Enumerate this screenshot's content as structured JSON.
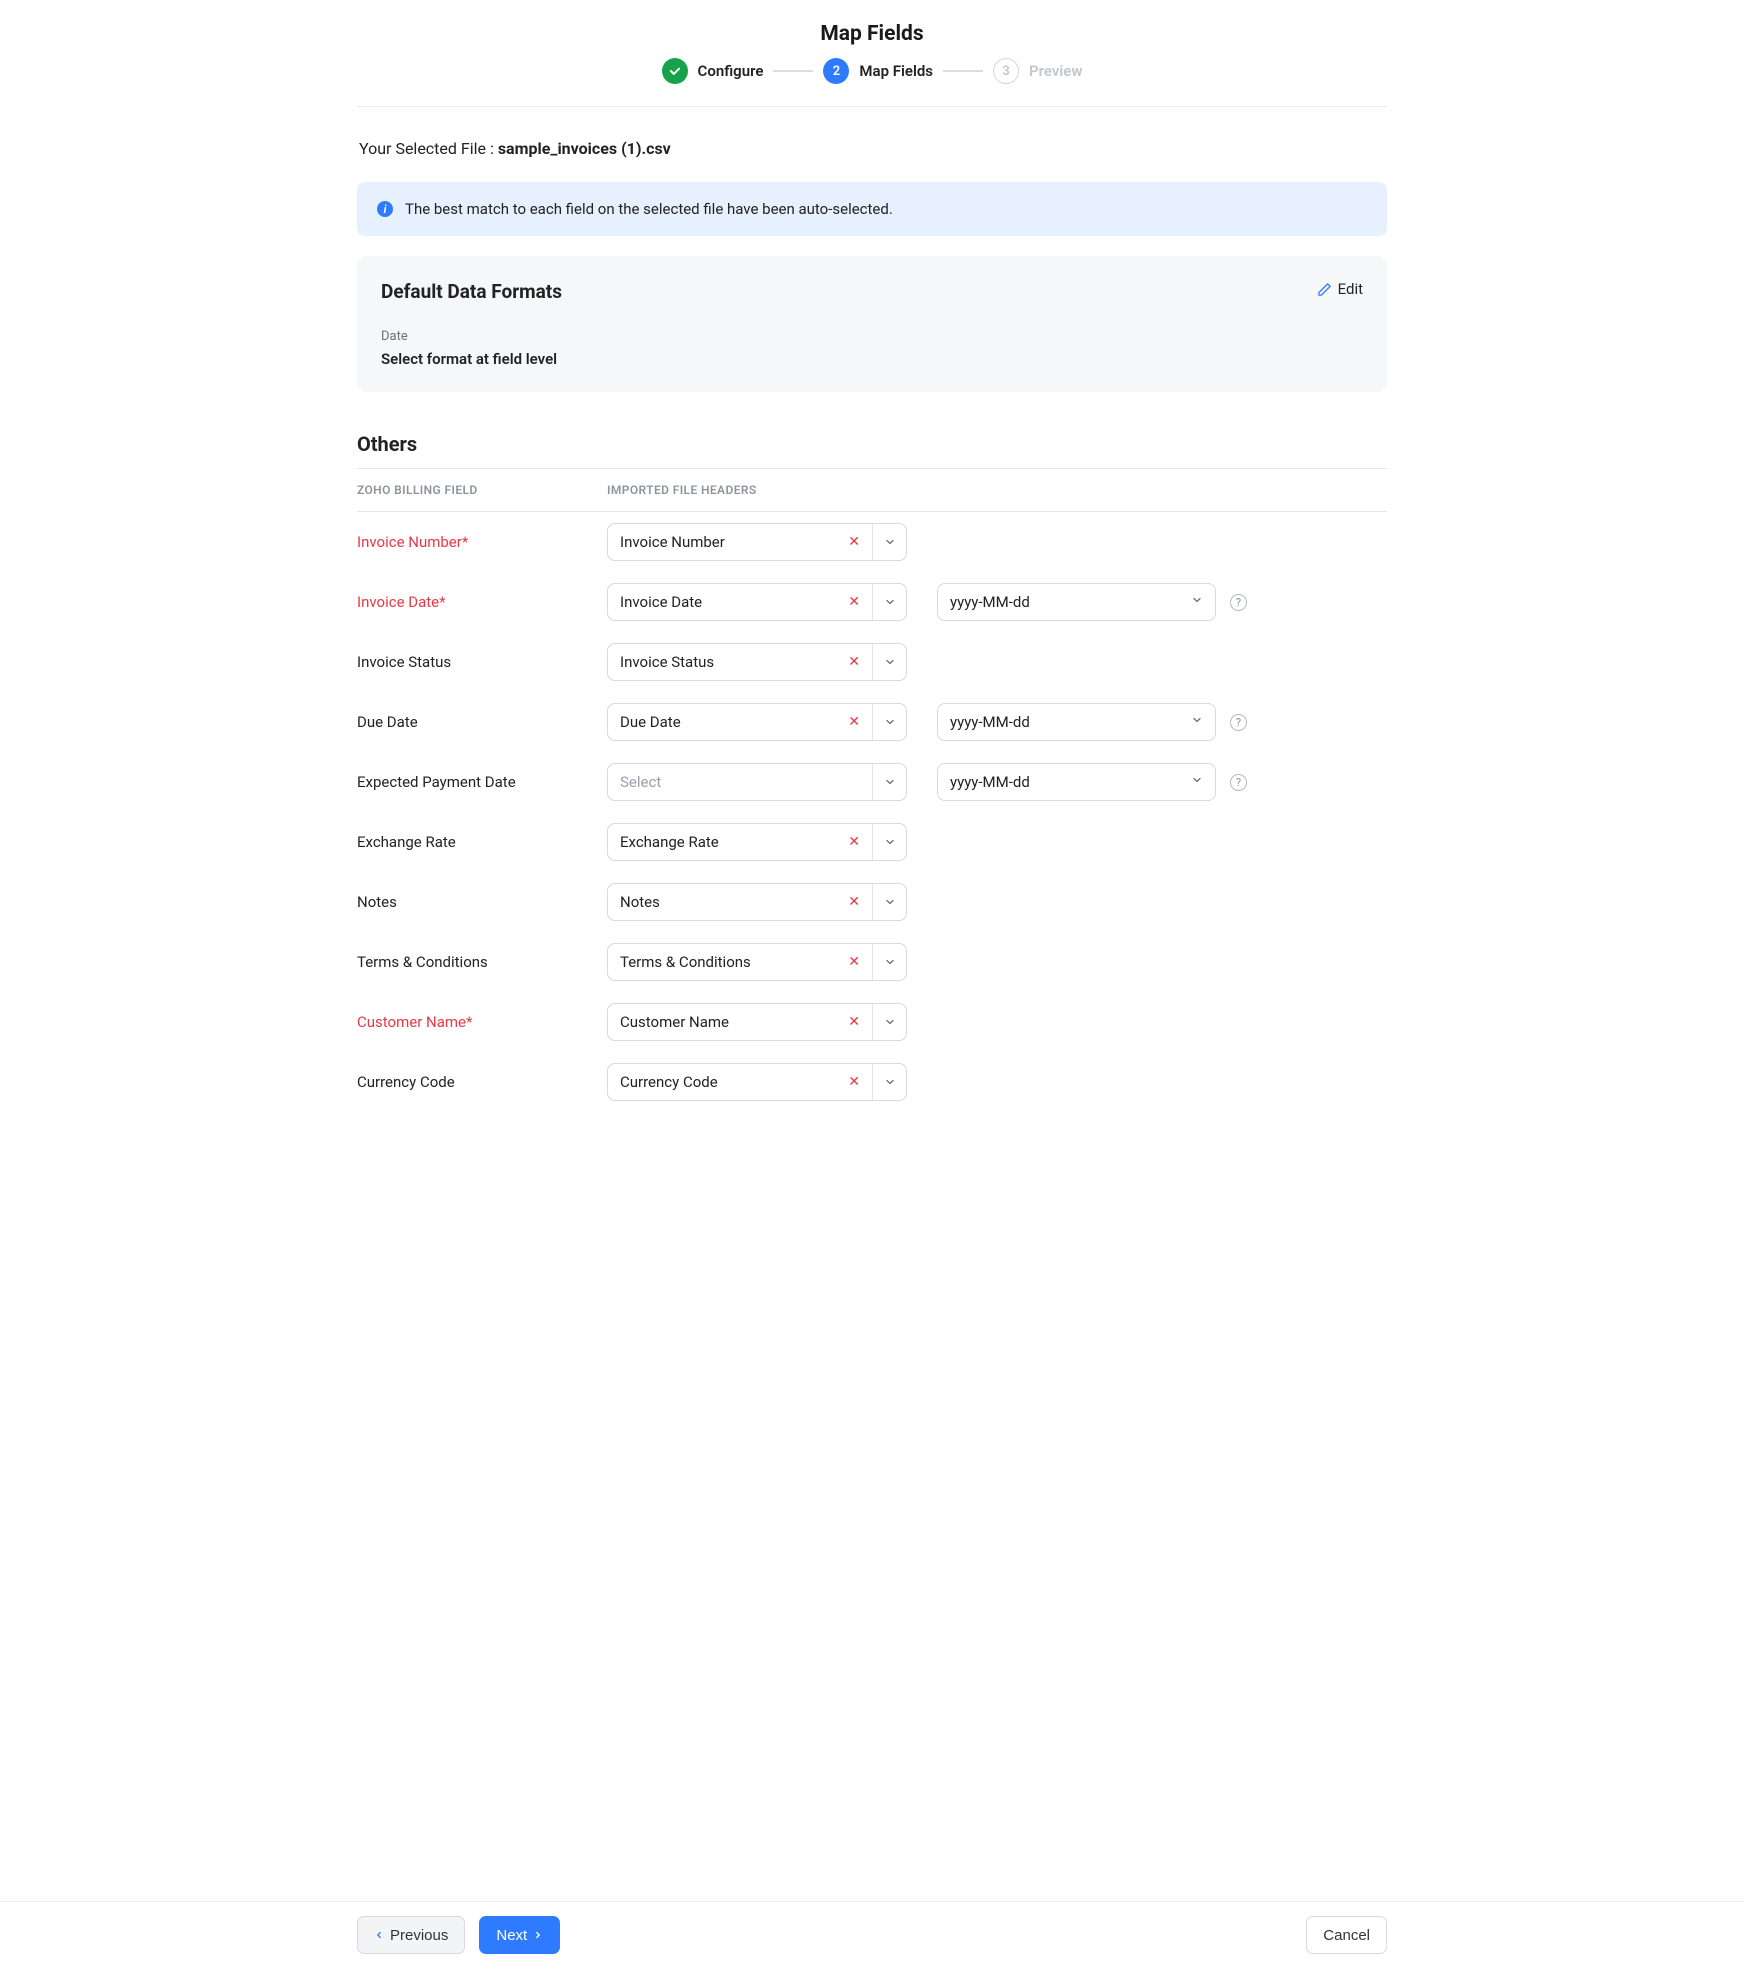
{
  "header": {
    "title": "Map Fields"
  },
  "stepper": {
    "step1": {
      "label": "Configure"
    },
    "step2": {
      "num": "2",
      "label": "Map Fields"
    },
    "step3": {
      "num": "3",
      "label": "Preview"
    }
  },
  "selectedFile": {
    "prefix": "Your Selected File : ",
    "name": "sample_invoices (1).csv"
  },
  "banner": {
    "text": "The best match to each field on the selected file have been auto-selected."
  },
  "formats": {
    "title": "Default Data Formats",
    "dateLabel": "Date",
    "dateValue": "Select format at field level",
    "edit": "Edit"
  },
  "section": {
    "title": "Others",
    "col1": "ZOHO BILLING FIELD",
    "col2": "IMPORTED FILE HEADERS"
  },
  "placeholders": {
    "select": "Select"
  },
  "dateFormat": "yyyy-MM-dd",
  "rows": {
    "invoiceNumber": {
      "label": "Invoice Number*",
      "req": true,
      "value": "Invoice Number",
      "hasDate": false
    },
    "invoiceDate": {
      "label": "Invoice Date*",
      "req": true,
      "value": "Invoice Date",
      "hasDate": true
    },
    "invoiceStatus": {
      "label": "Invoice Status",
      "req": false,
      "value": "Invoice Status",
      "hasDate": false
    },
    "dueDate": {
      "label": "Due Date",
      "req": false,
      "value": "Due Date",
      "hasDate": true
    },
    "expectedPayment": {
      "label": "Expected Payment Date",
      "req": false,
      "value": "",
      "hasDate": true
    },
    "exchangeRate": {
      "label": "Exchange Rate",
      "req": false,
      "value": "Exchange Rate",
      "hasDate": false
    },
    "notes": {
      "label": "Notes",
      "req": false,
      "value": "Notes",
      "hasDate": false
    },
    "terms": {
      "label": "Terms & Conditions",
      "req": false,
      "value": "Terms & Conditions",
      "hasDate": false
    },
    "customerName": {
      "label": "Customer Name*",
      "req": true,
      "value": "Customer Name",
      "hasDate": false
    },
    "currencyCode": {
      "label": "Currency Code",
      "req": false,
      "value": "Currency Code",
      "hasDate": false
    }
  },
  "footer": {
    "previous": "Previous",
    "next": "Next",
    "cancel": "Cancel"
  }
}
